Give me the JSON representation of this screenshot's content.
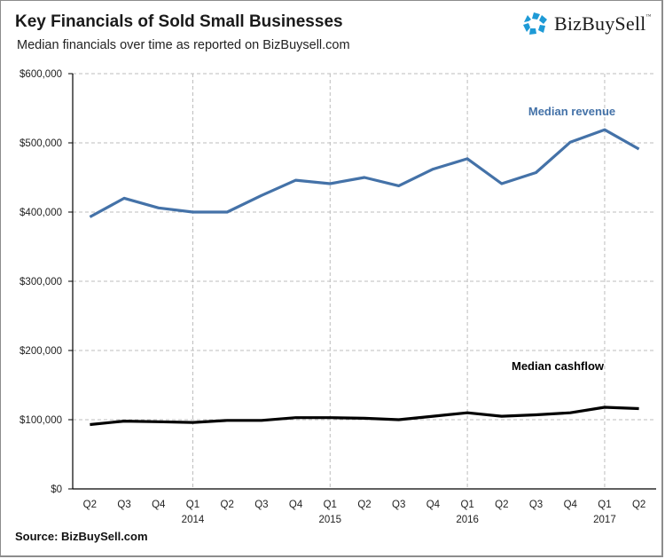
{
  "header": {
    "title": "Key Financials of Sold Small Businesses",
    "subtitle": "Median financials over time as reported  on  BizBuysell.com"
  },
  "logo": {
    "text": "BizBuySell",
    "tm": "™",
    "icon": "bizbuysell-star-icon",
    "color": "#1e9ad6"
  },
  "footer": {
    "source": "Source: BizBuySell.com"
  },
  "chart_data": {
    "type": "line",
    "title": "Key Financials of Sold Small Businesses",
    "subtitle": "Median financials over time as reported  on  BizBuysell.com",
    "xlabel": "",
    "ylabel": "",
    "categories": [
      "Q2",
      "Q3",
      "Q4",
      "Q1",
      "Q2",
      "Q3",
      "Q4",
      "Q1",
      "Q2",
      "Q3",
      "Q4",
      "Q1",
      "Q2",
      "Q3",
      "Q4",
      "Q1",
      "Q2"
    ],
    "year_labels": [
      {
        "index": 3,
        "label": "2014"
      },
      {
        "index": 7,
        "label": "2015"
      },
      {
        "index": 11,
        "label": "2016"
      },
      {
        "index": 15,
        "label": "2017"
      }
    ],
    "ylim": [
      0,
      600000
    ],
    "yticks": [
      0,
      100000,
      200000,
      300000,
      400000,
      500000,
      600000
    ],
    "ytick_labels": [
      "$0",
      "$100,000",
      "$200,000",
      "$300,000",
      "$400,000",
      "$500,000",
      "$600,000"
    ],
    "grid": {
      "horizontal": true,
      "vertical_at_year_starts": true,
      "style": "dashed"
    },
    "legend": "inline-labels",
    "series": [
      {
        "name": "Median revenue",
        "color": "#4472a8",
        "label_position": "above-right",
        "values": [
          393000,
          420000,
          406000,
          400000,
          400000,
          424000,
          446000,
          441000,
          450000,
          438000,
          462000,
          477000,
          441000,
          457000,
          501000,
          519000,
          491000
        ]
      },
      {
        "name": "Median cashflow",
        "color": "#000000",
        "label_position": "above-right",
        "values": [
          93000,
          98000,
          97000,
          96000,
          99000,
          99000,
          103000,
          103000,
          102000,
          100000,
          105000,
          110000,
          105000,
          107000,
          110000,
          118000,
          116000
        ]
      }
    ]
  }
}
